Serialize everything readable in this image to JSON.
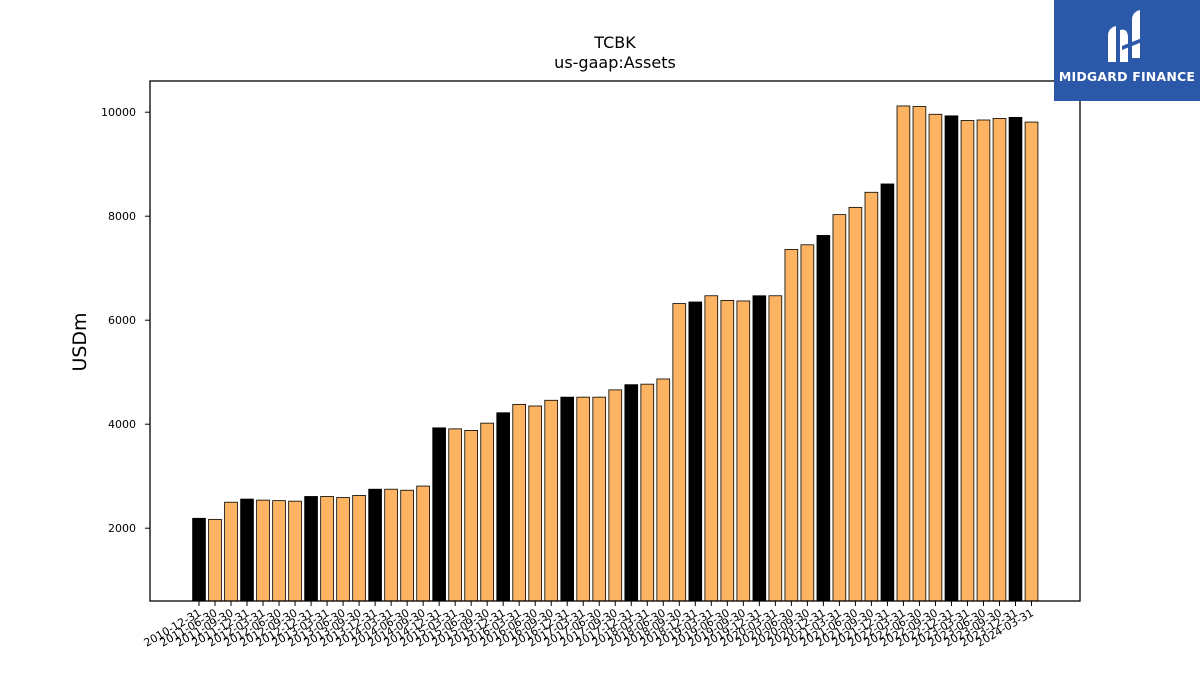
{
  "chart_data": {
    "type": "bar",
    "title": "TCBK",
    "subtitle": "us-gaap:Assets",
    "xlabel": "",
    "ylabel": "USDm",
    "ylim": [
      600,
      10600
    ],
    "yticks": [
      2000,
      4000,
      6000,
      8000,
      10000
    ],
    "grid": false,
    "colors": {
      "highlight": "#000000",
      "normal": "#fdb462",
      "edge": "#000000"
    },
    "categories": [
      "2010-12-31",
      "2011-06-30",
      "2011-09-30",
      "2011-12-31",
      "2012-03-31",
      "2012-06-30",
      "2012-09-30",
      "2012-12-31",
      "2013-03-31",
      "2013-06-30",
      "2013-09-30",
      "2013-12-31",
      "2014-03-31",
      "2014-06-30",
      "2014-09-30",
      "2014-12-31",
      "2015-03-31",
      "2015-06-30",
      "2015-09-30",
      "2015-12-31",
      "2016-03-31",
      "2016-06-30",
      "2016-09-30",
      "2016-12-31",
      "2017-03-31",
      "2017-06-30",
      "2017-09-30",
      "2017-12-31",
      "2018-03-31",
      "2018-06-30",
      "2018-09-30",
      "2018-12-31",
      "2019-03-31",
      "2019-06-30",
      "2019-09-30",
      "2019-12-31",
      "2020-03-31",
      "2020-06-30",
      "2020-09-30",
      "2020-12-31",
      "2021-03-31",
      "2021-06-30",
      "2021-09-30",
      "2021-12-31",
      "2022-03-31",
      "2022-06-30",
      "2022-09-30",
      "2022-12-31",
      "2023-03-31",
      "2023-06-30",
      "2023-09-30",
      "2023-12-31",
      "2024-03-31"
    ],
    "values": [
      2190,
      2170,
      2500,
      2560,
      2540,
      2530,
      2520,
      2610,
      2610,
      2590,
      2630,
      2750,
      2750,
      2730,
      2810,
      3930,
      3910,
      3880,
      4020,
      4220,
      4380,
      4350,
      4460,
      4520,
      4520,
      4520,
      4660,
      4760,
      4770,
      4870,
      6320,
      6350,
      6470,
      6380,
      6370,
      6470,
      6470,
      7360,
      7450,
      7630,
      8030,
      8170,
      8460,
      8620,
      10120,
      10110,
      9960,
      9930,
      9840,
      9850,
      9880,
      9900,
      9810
    ],
    "highlight": [
      true,
      false,
      false,
      true,
      false,
      false,
      false,
      true,
      false,
      false,
      false,
      true,
      false,
      false,
      false,
      true,
      false,
      false,
      false,
      true,
      false,
      false,
      false,
      true,
      false,
      false,
      false,
      true,
      false,
      false,
      false,
      true,
      false,
      false,
      false,
      true,
      false,
      false,
      false,
      true,
      false,
      false,
      false,
      true,
      false,
      false,
      false,
      true,
      false,
      false,
      false,
      true,
      false
    ]
  },
  "logo": {
    "text": "MIDGARD FINANCE"
  }
}
